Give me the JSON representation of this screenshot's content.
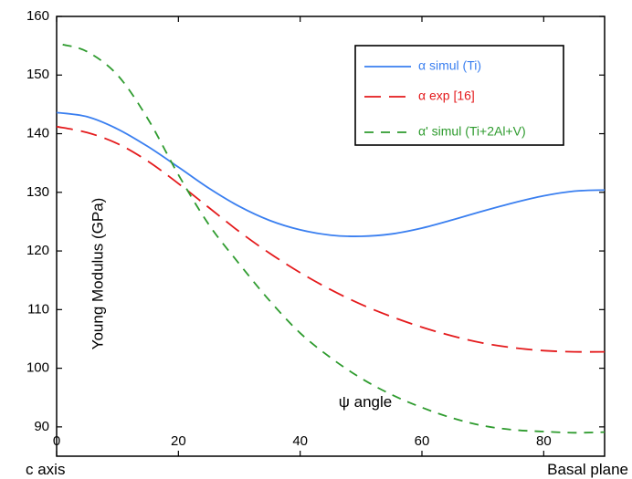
{
  "chart_data": {
    "type": "line",
    "ylabel": "Young Modulus (GPa)",
    "xlabel": "ψ angle",
    "x_axis_end_labels": {
      "left": "c axis",
      "right": "Basal plane"
    },
    "xlim": [
      0,
      90
    ],
    "ylim": [
      85,
      160
    ],
    "x_ticks": [
      0,
      20,
      40,
      60,
      80
    ],
    "y_ticks": [
      90,
      100,
      110,
      120,
      130,
      140,
      150,
      160
    ],
    "grid": false,
    "legend_position": "top-right",
    "series": [
      {
        "name": "α simul (Ti)",
        "color": "#3a7ff0",
        "style": "solid",
        "x": [
          0,
          5,
          10,
          15,
          20,
          25,
          30,
          35,
          40,
          45,
          50,
          55,
          60,
          65,
          70,
          75,
          80,
          85,
          90
        ],
        "y": [
          143.6,
          142.9,
          140.8,
          137.8,
          134.3,
          130.7,
          127.6,
          125.2,
          123.6,
          122.7,
          122.5,
          122.9,
          123.9,
          125.3,
          126.8,
          128.2,
          129.4,
          130.2,
          130.4
        ]
      },
      {
        "name": "α exp [16]",
        "color": "#e41a1c",
        "style": "long-dash",
        "x": [
          0,
          5,
          10,
          15,
          20,
          25,
          30,
          35,
          40,
          45,
          50,
          55,
          60,
          65,
          70,
          75,
          80,
          85,
          90
        ],
        "y": [
          141.2,
          140.2,
          138.3,
          135.3,
          131.5,
          127.4,
          123.3,
          119.6,
          116.3,
          113.4,
          110.9,
          108.8,
          107.0,
          105.5,
          104.3,
          103.5,
          103.0,
          102.8,
          102.8
        ]
      },
      {
        "name": "α' simul (Ti+2Al+V)",
        "color": "#2e9b2e",
        "style": "dash",
        "x": [
          1,
          5,
          10,
          15,
          20,
          25,
          30,
          35,
          40,
          45,
          50,
          55,
          60,
          65,
          70,
          75,
          80,
          85,
          90
        ],
        "y": [
          155.2,
          154.0,
          150.0,
          142.5,
          133.0,
          124.5,
          117.8,
          111.5,
          106.0,
          101.8,
          98.3,
          95.5,
          93.3,
          91.5,
          90.2,
          89.5,
          89.2,
          89.0,
          89.1
        ]
      }
    ]
  }
}
